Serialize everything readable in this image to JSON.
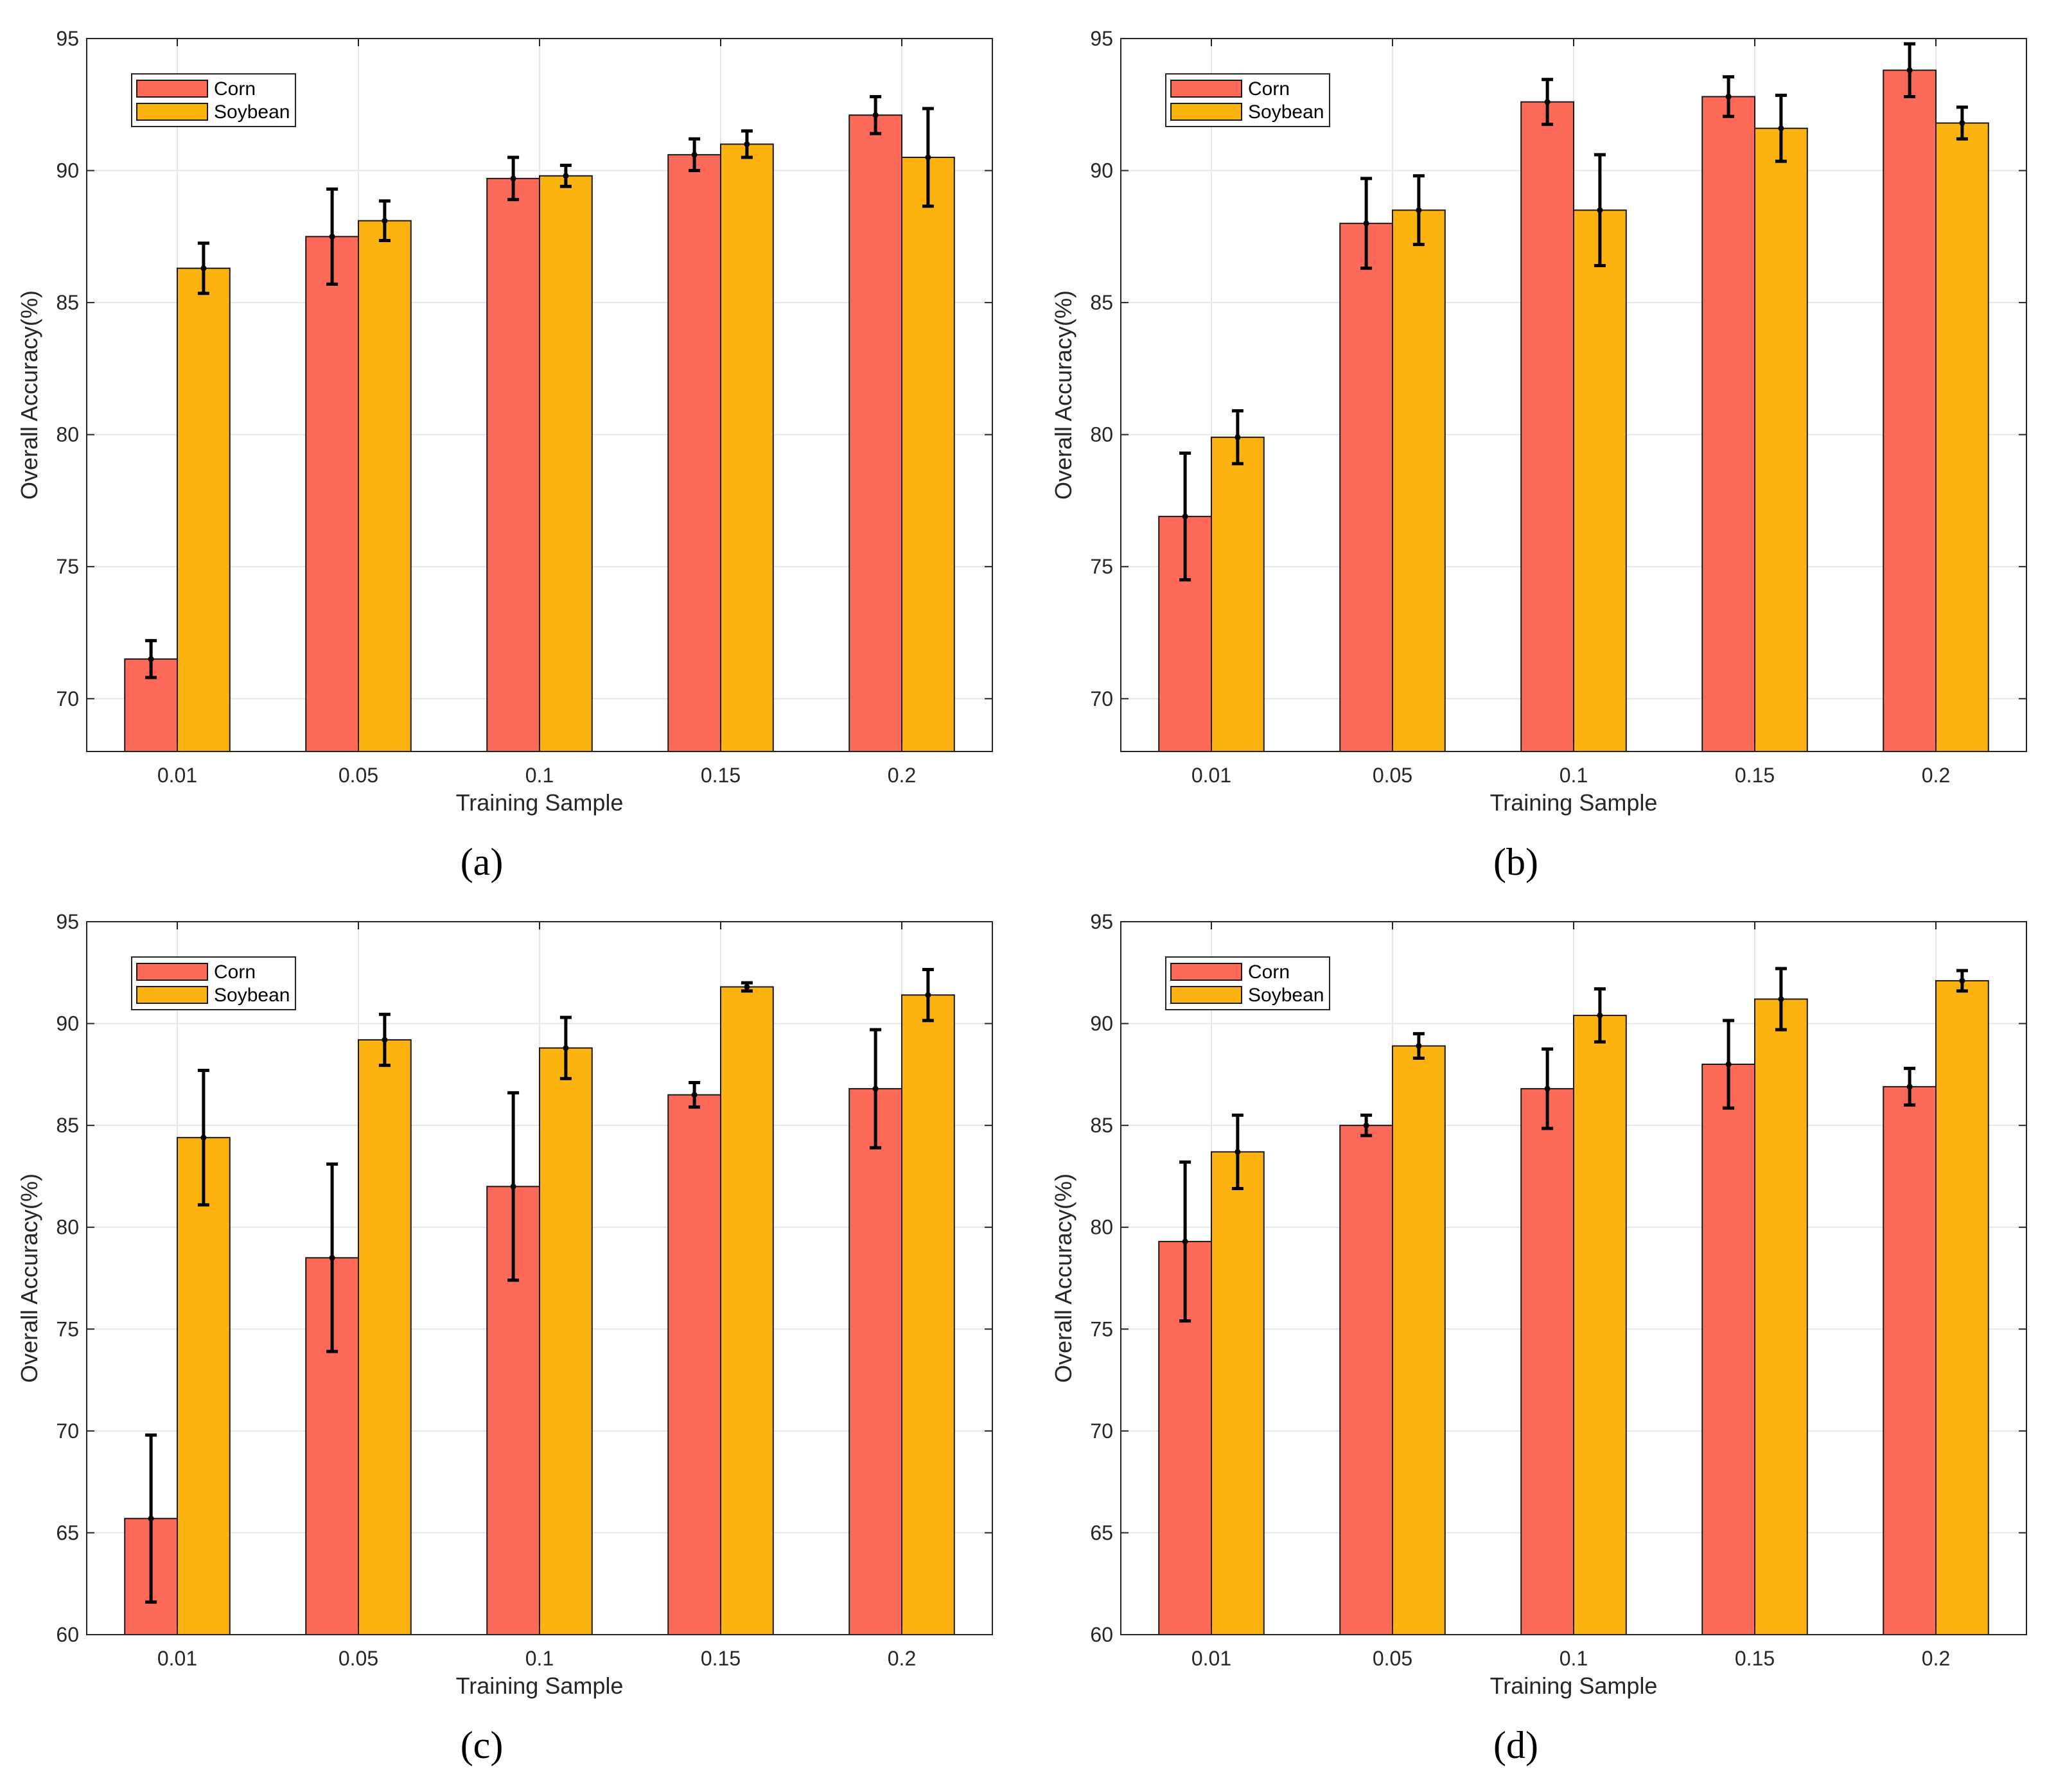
{
  "colors": {
    "corn": "#fe6a59",
    "soybean": "#fdb30f"
  },
  "chart_data": [
    {
      "type": "bar",
      "panel_label": "(a)",
      "xlabel": "Training Sample",
      "ylabel": "Overall Accuracy(%)",
      "categories": [
        "0.01",
        "0.05",
        "0.1",
        "0.15",
        "0.2"
      ],
      "ylim": [
        68,
        95
      ],
      "yticks": [
        "70",
        "75",
        "80",
        "85",
        "90",
        "95"
      ],
      "legend_position": "top-left",
      "grid": true,
      "series": [
        {
          "name": "Corn",
          "values": [
            71.5,
            87.5,
            89.7,
            90.6,
            92.1
          ],
          "errors": [
            0.7,
            1.8,
            0.8,
            0.6,
            0.7
          ]
        },
        {
          "name": "Soybean",
          "values": [
            86.3,
            88.1,
            89.8,
            91.0,
            90.5
          ],
          "errors": [
            0.95,
            0.75,
            0.4,
            0.5,
            1.85
          ]
        }
      ]
    },
    {
      "type": "bar",
      "panel_label": "(b)",
      "xlabel": "Training Sample",
      "ylabel": "Overall Accuracy(%)",
      "categories": [
        "0.01",
        "0.05",
        "0.1",
        "0.15",
        "0.2"
      ],
      "ylim": [
        68,
        95
      ],
      "yticks": [
        "70",
        "75",
        "80",
        "85",
        "90",
        "95"
      ],
      "legend_position": "top-left",
      "grid": true,
      "series": [
        {
          "name": "Corn",
          "values": [
            76.9,
            88.0,
            92.6,
            92.8,
            93.8
          ],
          "errors": [
            2.4,
            1.7,
            0.85,
            0.75,
            1.0
          ]
        },
        {
          "name": "Soybean",
          "values": [
            79.9,
            88.5,
            88.5,
            91.6,
            91.8
          ],
          "errors": [
            1.0,
            1.3,
            2.1,
            1.25,
            0.6
          ]
        }
      ]
    },
    {
      "type": "bar",
      "panel_label": "(c)",
      "xlabel": "Training Sample",
      "ylabel": "Overall Accuracy(%)",
      "categories": [
        "0.01",
        "0.05",
        "0.1",
        "0.15",
        "0.2"
      ],
      "ylim": [
        60,
        95
      ],
      "yticks": [
        "60",
        "65",
        "70",
        "75",
        "80",
        "85",
        "90",
        "95"
      ],
      "legend_position": "top-left",
      "grid": true,
      "series": [
        {
          "name": "Corn",
          "values": [
            65.7,
            78.5,
            82.0,
            86.5,
            86.8
          ],
          "errors": [
            4.1,
            4.6,
            4.6,
            0.6,
            2.9
          ]
        },
        {
          "name": "Soybean",
          "values": [
            84.4,
            89.2,
            88.8,
            91.8,
            91.4
          ],
          "errors": [
            3.3,
            1.25,
            1.5,
            0.2,
            1.25
          ]
        }
      ]
    },
    {
      "type": "bar",
      "panel_label": "(d)",
      "xlabel": "Training Sample",
      "ylabel": "Overall Accuracy(%)",
      "categories": [
        "0.01",
        "0.05",
        "0.1",
        "0.15",
        "0.2"
      ],
      "ylim": [
        60,
        95
      ],
      "yticks": [
        "60",
        "65",
        "70",
        "75",
        "80",
        "85",
        "90",
        "95"
      ],
      "legend_position": "top-left",
      "grid": true,
      "series": [
        {
          "name": "Corn",
          "values": [
            79.3,
            85.0,
            86.8,
            88.0,
            86.9
          ],
          "errors": [
            3.9,
            0.5,
            1.95,
            2.15,
            0.9
          ]
        },
        {
          "name": "Soybean",
          "values": [
            83.7,
            88.9,
            90.4,
            91.2,
            92.1
          ],
          "errors": [
            1.8,
            0.6,
            1.3,
            1.5,
            0.5
          ]
        }
      ]
    }
  ]
}
